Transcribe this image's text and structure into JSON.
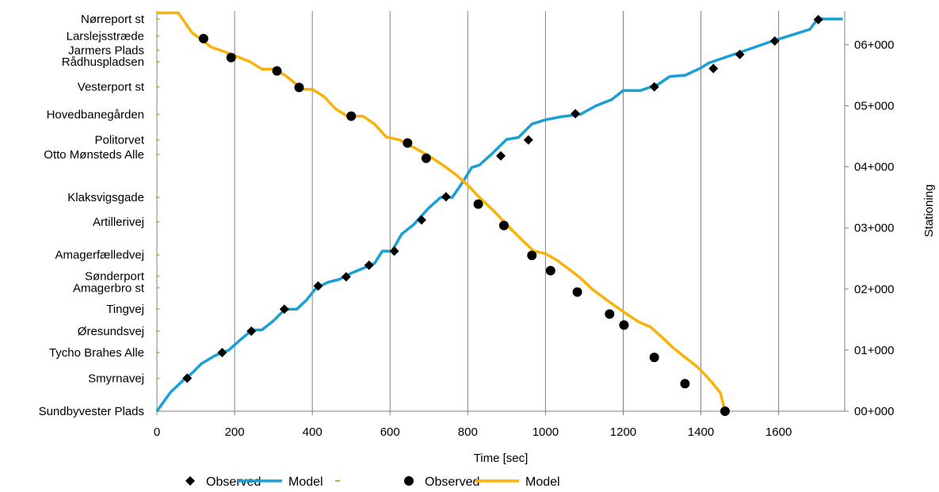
{
  "chart_data": {
    "type": "line",
    "xlabel": "Time [sec]",
    "ylabel_right": "Stationing",
    "xlim": [
      0,
      1770
    ],
    "ylim": [
      0,
      6550
    ],
    "x_ticks": [
      0,
      200,
      400,
      600,
      800,
      1000,
      1200,
      1400,
      1600
    ],
    "y_ticks_right": [
      {
        "value": 0,
        "label": "00+000"
      },
      {
        "value": 1000,
        "label": "01+000"
      },
      {
        "value": 2000,
        "label": "02+000"
      },
      {
        "value": 3000,
        "label": "03+000"
      },
      {
        "value": 4000,
        "label": "04+000"
      },
      {
        "value": 5000,
        "label": "05+000"
      },
      {
        "value": 6000,
        "label": "06+000"
      }
    ],
    "grid": "vertical",
    "legend_position": "bottom",
    "stations": [
      {
        "name": "Sundbyvester Plads",
        "value": 0
      },
      {
        "name": "Smyrnavej",
        "value": 540
      },
      {
        "name": "Tycho Brahes Alle",
        "value": 960
      },
      {
        "name": "Øresundsvej",
        "value": 1310
      },
      {
        "name": "Tingvej",
        "value": 1670
      },
      {
        "name": "Amagerbro st",
        "value": 2020
      },
      {
        "name": "Sønderport",
        "value": 2210
      },
      {
        "name": "Amagerfælledvej",
        "value": 2560
      },
      {
        "name": "Artillerivej",
        "value": 3100
      },
      {
        "name": "Klaksvigsgade",
        "value": 3500
      },
      {
        "name": "Otto Mønsteds Alle",
        "value": 4200
      },
      {
        "name": "Politorvet",
        "value": 4440
      },
      {
        "name": "Hovedbanegården",
        "value": 4860
      },
      {
        "name": "Vesterport st",
        "value": 5310
      },
      {
        "name": "Rådhuspladsen",
        "value": 5720
      },
      {
        "name": "Jarmers Plads",
        "value": 5910
      },
      {
        "name": "Larslejsstræde",
        "value": 6140
      },
      {
        "name": "Nørreport st",
        "value": 6420
      }
    ],
    "series": [
      {
        "name": "Observed",
        "kind": "scatter",
        "marker": "diamond",
        "color": "#000000",
        "points": [
          [
            78,
            540
          ],
          [
            168,
            960
          ],
          [
            243,
            1310
          ],
          [
            328,
            1670
          ],
          [
            415,
            2050
          ],
          [
            487,
            2200
          ],
          [
            546,
            2390
          ],
          [
            611,
            2620
          ],
          [
            681,
            3130
          ],
          [
            744,
            3510
          ],
          [
            885,
            4180
          ],
          [
            956,
            4440
          ],
          [
            1077,
            4870
          ],
          [
            1280,
            5310
          ],
          [
            1432,
            5610
          ],
          [
            1500,
            5840
          ],
          [
            1590,
            6060
          ],
          [
            1702,
            6410
          ]
        ]
      },
      {
        "name": "Model",
        "kind": "line",
        "color": "#1aa0d6",
        "points": [
          [
            0,
            0
          ],
          [
            35,
            310
          ],
          [
            70,
            520
          ],
          [
            90,
            620
          ],
          [
            115,
            780
          ],
          [
            150,
            910
          ],
          [
            185,
            1000
          ],
          [
            215,
            1170
          ],
          [
            245,
            1330
          ],
          [
            270,
            1330
          ],
          [
            300,
            1480
          ],
          [
            330,
            1670
          ],
          [
            360,
            1670
          ],
          [
            385,
            1820
          ],
          [
            410,
            2020
          ],
          [
            440,
            2110
          ],
          [
            470,
            2160
          ],
          [
            500,
            2260
          ],
          [
            535,
            2350
          ],
          [
            560,
            2420
          ],
          [
            580,
            2620
          ],
          [
            605,
            2620
          ],
          [
            630,
            2900
          ],
          [
            660,
            3050
          ],
          [
            700,
            3330
          ],
          [
            730,
            3500
          ],
          [
            760,
            3500
          ],
          [
            790,
            3780
          ],
          [
            810,
            3990
          ],
          [
            830,
            4030
          ],
          [
            860,
            4200
          ],
          [
            900,
            4450
          ],
          [
            930,
            4480
          ],
          [
            965,
            4700
          ],
          [
            1000,
            4770
          ],
          [
            1040,
            4820
          ],
          [
            1090,
            4860
          ],
          [
            1130,
            5000
          ],
          [
            1170,
            5100
          ],
          [
            1200,
            5250
          ],
          [
            1245,
            5250
          ],
          [
            1290,
            5350
          ],
          [
            1320,
            5480
          ],
          [
            1360,
            5500
          ],
          [
            1400,
            5620
          ],
          [
            1420,
            5700
          ],
          [
            1480,
            5830
          ],
          [
            1530,
            5940
          ],
          [
            1580,
            6050
          ],
          [
            1630,
            6150
          ],
          [
            1680,
            6250
          ],
          [
            1700,
            6420
          ],
          [
            1765,
            6420
          ]
        ]
      },
      {
        "name": "Observed",
        "kind": "scatter",
        "marker": "circle",
        "color": "#000000",
        "points": [
          [
            120,
            6100
          ],
          [
            191,
            5790
          ],
          [
            309,
            5570
          ],
          [
            366,
            5300
          ],
          [
            500,
            4830
          ],
          [
            645,
            4390
          ],
          [
            693,
            4140
          ],
          [
            827,
            3390
          ],
          [
            893,
            3040
          ],
          [
            965,
            2550
          ],
          [
            1013,
            2300
          ],
          [
            1082,
            1950
          ],
          [
            1165,
            1590
          ],
          [
            1202,
            1410
          ],
          [
            1280,
            880
          ],
          [
            1359,
            450
          ],
          [
            1462,
            0
          ]
        ]
      },
      {
        "name": "Model",
        "kind": "line",
        "color": "#fab20b",
        "points": [
          [
            0,
            6520
          ],
          [
            55,
            6520
          ],
          [
            90,
            6200
          ],
          [
            140,
            5960
          ],
          [
            180,
            5870
          ],
          [
            240,
            5720
          ],
          [
            270,
            5600
          ],
          [
            300,
            5600
          ],
          [
            330,
            5500
          ],
          [
            375,
            5270
          ],
          [
            400,
            5270
          ],
          [
            430,
            5150
          ],
          [
            460,
            4950
          ],
          [
            490,
            4830
          ],
          [
            530,
            4830
          ],
          [
            560,
            4700
          ],
          [
            590,
            4490
          ],
          [
            625,
            4440
          ],
          [
            660,
            4320
          ],
          [
            700,
            4180
          ],
          [
            740,
            4010
          ],
          [
            770,
            3870
          ],
          [
            800,
            3700
          ],
          [
            830,
            3500
          ],
          [
            870,
            3260
          ],
          [
            910,
            2990
          ],
          [
            940,
            2800
          ],
          [
            970,
            2620
          ],
          [
            1000,
            2580
          ],
          [
            1030,
            2470
          ],
          [
            1070,
            2280
          ],
          [
            1090,
            2180
          ],
          [
            1120,
            2000
          ],
          [
            1160,
            1810
          ],
          [
            1200,
            1630
          ],
          [
            1240,
            1460
          ],
          [
            1270,
            1380
          ],
          [
            1300,
            1210
          ],
          [
            1330,
            1030
          ],
          [
            1360,
            880
          ],
          [
            1390,
            730
          ],
          [
            1410,
            600
          ],
          [
            1430,
            460
          ],
          [
            1450,
            300
          ],
          [
            1462,
            0
          ]
        ]
      }
    ],
    "legend": [
      {
        "label": "Observed",
        "marker": "diamond",
        "color": "#000000"
      },
      {
        "label": "Model",
        "marker": "line",
        "color": "#1aa0d6"
      },
      {
        "label": "",
        "marker": "dash",
        "color": "#92c850"
      },
      {
        "label": "Observed",
        "marker": "circle",
        "color": "#000000"
      },
      {
        "label": "Model",
        "marker": "line",
        "color": "#fab20b"
      }
    ],
    "station_tick_color": "#92c850",
    "grid_color": "#808080"
  }
}
